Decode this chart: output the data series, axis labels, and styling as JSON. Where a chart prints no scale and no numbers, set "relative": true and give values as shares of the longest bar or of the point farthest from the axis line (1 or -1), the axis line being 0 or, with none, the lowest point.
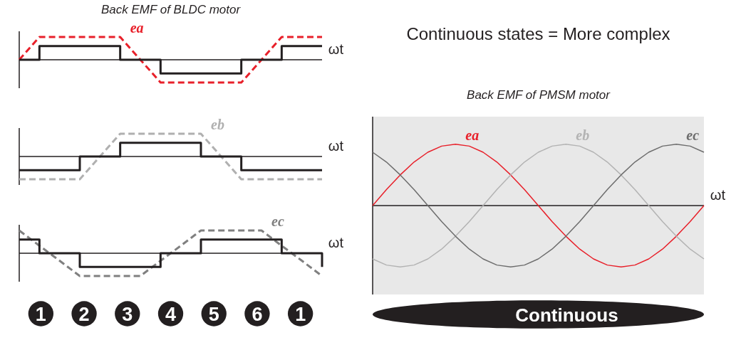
{
  "chart_data": [
    {
      "type": "line",
      "title": "Back EMF of BLDC motor",
      "xlabel": "ωt",
      "relative": true,
      "categories": [
        null,
        null,
        null,
        null,
        null,
        null,
        null,
        null,
        null,
        null,
        null,
        null,
        null,
        null,
        null,
        null
      ],
      "series": [
        {
          "name": "ea",
          "color": "#e8202a",
          "type": "line",
          "line_style": "dashed",
          "values": [
            0,
            1,
            1,
            1,
            1,
            1,
            0,
            -1,
            -1,
            -1,
            -1,
            -1,
            0,
            1,
            1,
            1
          ]
        },
        {
          "color": "#231f20",
          "type": "step",
          "line_style": "solid",
          "values": [
            0,
            0.6,
            0.6,
            0.6,
            0.6,
            0,
            0,
            -0.6,
            -0.6,
            -0.6,
            -0.6,
            0,
            0,
            0.6,
            0.6,
            0.6
          ]
        }
      ]
    },
    {
      "type": "line",
      "xlabel": "ωt",
      "relative": true,
      "categories": [
        null,
        null,
        null,
        null,
        null,
        null,
        null,
        null,
        null,
        null,
        null,
        null,
        null,
        null,
        null,
        null
      ],
      "series": [
        {
          "name": "eb",
          "color": "#b0b0b0",
          "type": "line",
          "line_style": "dashed",
          "values": [
            -1,
            -1,
            -1,
            -1,
            0,
            1,
            1,
            1,
            1,
            1,
            0,
            -1,
            -1,
            -1,
            -1,
            -1
          ]
        },
        {
          "color": "#231f20",
          "type": "step",
          "line_style": "solid",
          "values": [
            -0.6,
            -0.6,
            -0.6,
            0,
            0,
            0.6,
            0.6,
            0.6,
            0.6,
            0,
            0,
            -0.6,
            -0.6,
            -0.6,
            -0.6,
            -0.6
          ]
        }
      ]
    },
    {
      "type": "line",
      "xlabel": "ωt",
      "relative": true,
      "categories": [
        null,
        null,
        null,
        null,
        null,
        null,
        null,
        null,
        null,
        null,
        null,
        null,
        null,
        null,
        null,
        null
      ],
      "series": [
        {
          "name": "ec",
          "color": "#808080",
          "type": "line",
          "line_style": "dashed",
          "values": [
            1,
            0.33,
            -0.33,
            -1,
            -1,
            -1,
            -1,
            -0.33,
            0.33,
            1,
            1,
            1,
            1,
            0.33,
            -0.33,
            -1
          ]
        },
        {
          "color": "#231f20",
          "type": "step",
          "line_style": "solid",
          "values": [
            0.6,
            0,
            0,
            -0.6,
            -0.6,
            -0.6,
            -0.6,
            0,
            0,
            0.6,
            0.6,
            0.6,
            0.6,
            0,
            0,
            -0.6
          ]
        }
      ],
      "annotations": [
        "1",
        "2",
        "3",
        "4",
        "5",
        "6",
        "1"
      ]
    },
    {
      "type": "line",
      "title": "Back EMF of PMSM motor",
      "xlabel": "ωt",
      "relative": true,
      "categories": [
        null,
        null,
        null,
        null,
        null,
        null,
        null,
        null,
        null,
        null,
        null,
        null,
        null,
        null,
        null,
        null,
        null,
        null,
        null,
        null,
        null,
        null,
        null,
        null,
        null
      ],
      "series": [
        {
          "name": "ea",
          "color": "#e8202a",
          "line_style": "solid",
          "values": [
            0,
            0.26,
            0.5,
            0.71,
            0.87,
            0.97,
            1,
            0.97,
            0.87,
            0.71,
            0.5,
            0.26,
            0,
            -0.26,
            -0.5,
            -0.71,
            -0.87,
            -0.97,
            -1,
            -0.97,
            -0.87,
            -0.71,
            -0.5,
            -0.26,
            0
          ]
        },
        {
          "name": "eb",
          "color": "#b3b3b3",
          "line_style": "solid",
          "values": [
            -0.87,
            -0.97,
            -1,
            -0.97,
            -0.87,
            -0.71,
            -0.5,
            -0.26,
            0,
            0.26,
            0.5,
            0.71,
            0.87,
            0.97,
            1,
            0.97,
            0.87,
            0.71,
            0.5,
            0.26,
            0,
            -0.26,
            -0.5,
            -0.71,
            -0.87
          ]
        },
        {
          "name": "ec",
          "color": "#6d6d6d",
          "line_style": "solid",
          "values": [
            0.87,
            0.71,
            0.5,
            0.26,
            0,
            -0.26,
            -0.5,
            -0.71,
            -0.87,
            -0.97,
            -1,
            -0.97,
            -0.87,
            -0.71,
            -0.5,
            -0.26,
            0,
            0.26,
            0.5,
            0.71,
            0.87,
            0.97,
            1,
            0.97,
            0.87
          ]
        }
      ],
      "annotations": [
        "Continuous states = More complex",
        "Continuous"
      ]
    }
  ]
}
